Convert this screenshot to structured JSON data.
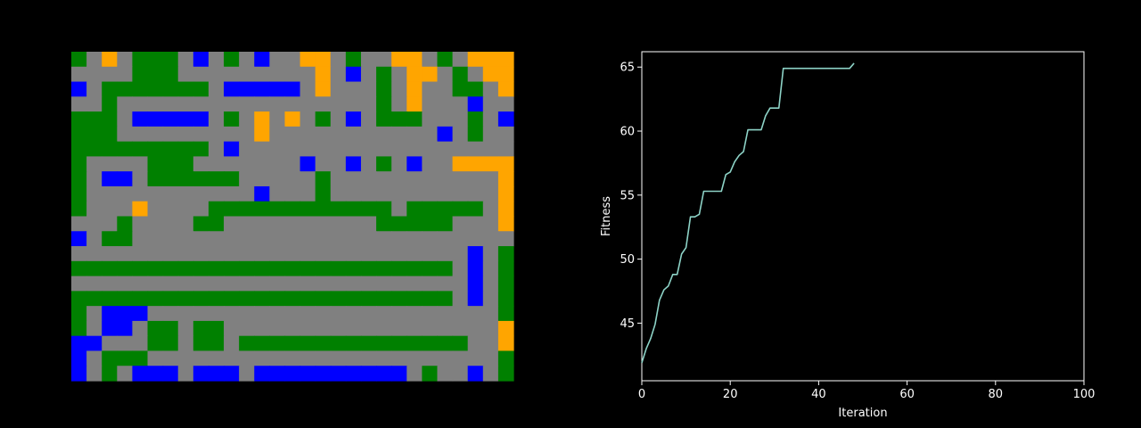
{
  "grid_map": {
    "rows": 22,
    "cols": 29,
    "palette": {
      "R": "#808080",
      "G": "#008000",
      "B": "#0000ff",
      "O": "#ffa500"
    },
    "cells": [
      "GRORGGGRBRGRBRROORGRROORGROOO",
      "RRRRGGGRRRRRRRRRORBRGROORGROO",
      "BRGGGGGGGRBBBBBRORRRGRORRGGRO",
      "RRGRRRRRRRRRRRRRRRRRGRORRRBRR",
      "GGGRBBBBBRGRORORGRBRGGGRRRGRB",
      "GGGRRRRRRRRRORRRRRRRRRRRBRGRR",
      "GGGGGGGGGRBRRRRRRRRRRRRRRRRRR",
      "GRRRRGGGRRRRRRRBRRBRGRBRROOOO",
      "GRBBRGGGGGGRRRRRGRRRRRRRRRRRO",
      "GRRRRRRRRRRRBRRRGRRRRRRRRRRRO",
      "GRRRORRRRGGGGGGGGGGGGRGGGGGRO",
      "RRRGRRRRGGRRRRRRRRRRGGGGGRRRO",
      "BRGGRRRRRRRRRRRRRRRRRRRRRRRRR",
      "RRRRRRRRRRRRRRRRRRRRRRRRRRBRG",
      "GGGGGGGGGGGGGGGGGGGGGGGGGRBRG",
      "RRRRRRRRRRRRRRRRRRRRRRRRRRBRG",
      "GGGGGGGGGGGGGGGGGGGGGGGGGRBRG",
      "GRBBBRRRRRRRRRRRRRRRRRRRRRRRG",
      "GRBBRGGRGGRRRRRRRRRRRRRRRRRRO",
      "BBRRRGGRGGRGGGGGGGGGGGGGGGRRO",
      "BRGGGRRRRRRRRRRRRRRRRRRRRRRRG",
      "BRGRBBBRBBBRBBBBBBBBBBRGRRBRG"
    ]
  },
  "chart_data": {
    "type": "line",
    "title": "",
    "xlabel": "Iteration",
    "ylabel": "Fitness",
    "xlim": [
      0,
      100
    ],
    "ylim": [
      40.5,
      66.2
    ],
    "xticks": [
      0,
      20,
      40,
      60,
      80,
      100
    ],
    "yticks": [
      45,
      50,
      55,
      60,
      65
    ],
    "grid": false,
    "legend": "none",
    "line_color": "#8dd3c7",
    "series": [
      {
        "x": [
          0,
          1,
          2,
          3,
          4,
          5,
          6,
          7,
          8,
          9,
          10,
          11,
          12,
          13,
          14,
          15,
          16,
          17,
          18,
          19,
          20,
          21,
          22,
          23,
          24,
          25,
          26,
          27,
          28,
          29,
          30,
          31,
          32,
          33,
          34,
          35,
          36,
          37,
          38,
          39,
          40,
          41,
          42,
          43,
          44,
          45,
          46,
          47,
          48
        ],
        "y": [
          41.9,
          43.0,
          43.8,
          44.9,
          46.8,
          47.6,
          47.9,
          48.8,
          48.8,
          50.4,
          50.9,
          53.3,
          53.3,
          53.5,
          55.3,
          55.3,
          55.3,
          55.3,
          55.3,
          56.6,
          56.8,
          57.6,
          58.1,
          58.4,
          60.1,
          60.1,
          60.1,
          60.1,
          61.2,
          61.8,
          61.8,
          61.8,
          64.9,
          64.9,
          64.9,
          64.9,
          64.9,
          64.9,
          64.9,
          64.9,
          64.9,
          64.9,
          64.9,
          64.9,
          64.9,
          64.9,
          64.9,
          64.9,
          65.3
        ]
      }
    ]
  }
}
